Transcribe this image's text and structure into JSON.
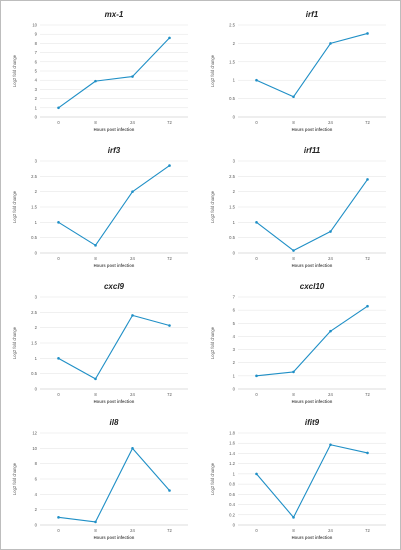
{
  "colors": {
    "line": "#1f8fc6",
    "grid": "#e2e2e2",
    "axis": "#bdbdbd"
  },
  "chart_data": [
    {
      "type": "line",
      "title": "mx-1",
      "xlabel": "Hours post infection",
      "ylabel": "Log2 fold change",
      "categories": [
        "0",
        "8",
        "24",
        "72"
      ],
      "values": [
        1.0,
        3.9,
        4.4,
        8.6
      ],
      "ylim": [
        0,
        10
      ],
      "yticks": [
        "0",
        "1",
        "2",
        "3",
        "4",
        "5",
        "6",
        "7",
        "8",
        "9",
        "10"
      ],
      "grid": true
    },
    {
      "type": "line",
      "title": "irf1",
      "xlabel": "Hours post infection",
      "ylabel": "Log2 fold change",
      "categories": [
        "0",
        "8",
        "24",
        "72"
      ],
      "values": [
        1.0,
        0.55,
        2.0,
        2.27
      ],
      "ylim": [
        0,
        2.5
      ],
      "yticks": [
        "0",
        "0.5",
        "1",
        "1.5",
        "2",
        "2.5"
      ],
      "grid": true
    },
    {
      "type": "line",
      "title": "irf3",
      "xlabel": "Hours post infection",
      "ylabel": "Log2 fold change",
      "categories": [
        "0",
        "8",
        "24",
        "72"
      ],
      "values": [
        1.0,
        0.25,
        2.0,
        2.85
      ],
      "ylim": [
        0,
        3
      ],
      "yticks": [
        "0",
        "0.5",
        "1",
        "1.5",
        "2",
        "2.5",
        "3"
      ],
      "grid": true
    },
    {
      "type": "line",
      "title": "irf11",
      "xlabel": "Hours post infection",
      "ylabel": "Log2 fold change",
      "categories": [
        "0",
        "8",
        "24",
        "72"
      ],
      "values": [
        1.0,
        0.08,
        0.7,
        2.4
      ],
      "ylim": [
        0,
        3
      ],
      "yticks": [
        "0",
        "0.5",
        "1",
        "1.5",
        "2",
        "2.5",
        "3"
      ],
      "grid": true
    },
    {
      "type": "line",
      "title": "cxcl9",
      "xlabel": "Hours post infection",
      "ylabel": "Log2 fold change",
      "categories": [
        "0",
        "8",
        "24",
        "72"
      ],
      "values": [
        1.0,
        0.33,
        2.4,
        2.07
      ],
      "ylim": [
        0,
        3
      ],
      "yticks": [
        "0",
        "0.5",
        "1",
        "1.5",
        "2",
        "2.5",
        "3"
      ],
      "grid": true
    },
    {
      "type": "line",
      "title": "cxcl10",
      "xlabel": "Hours post infection",
      "ylabel": "Log2 fold change",
      "categories": [
        "0",
        "8",
        "24",
        "72"
      ],
      "values": [
        1.0,
        1.3,
        4.4,
        6.3
      ],
      "ylim": [
        0,
        7
      ],
      "yticks": [
        "0",
        "1",
        "2",
        "3",
        "4",
        "5",
        "6",
        "7"
      ],
      "grid": true
    },
    {
      "type": "line",
      "title": "il8",
      "xlabel": "Hours post infection",
      "ylabel": "Log2 fold change",
      "categories": [
        "0",
        "8",
        "24",
        "72"
      ],
      "values": [
        1.0,
        0.4,
        10.0,
        4.5
      ],
      "ylim": [
        0,
        12
      ],
      "yticks": [
        "0",
        "2",
        "4",
        "6",
        "8",
        "10",
        "12"
      ],
      "grid": true
    },
    {
      "type": "line",
      "title": "ifit9",
      "xlabel": "Hours post infection",
      "ylabel": "Log2 fold change",
      "categories": [
        "0",
        "8",
        "24",
        "72"
      ],
      "values": [
        1.0,
        0.15,
        1.57,
        1.41
      ],
      "ylim": [
        0,
        1.8
      ],
      "yticks": [
        "0",
        "0.2",
        "0.4",
        "0.6",
        "0.8",
        "1",
        "1.2",
        "1.4",
        "1.6",
        "1.8"
      ],
      "grid": true
    }
  ]
}
